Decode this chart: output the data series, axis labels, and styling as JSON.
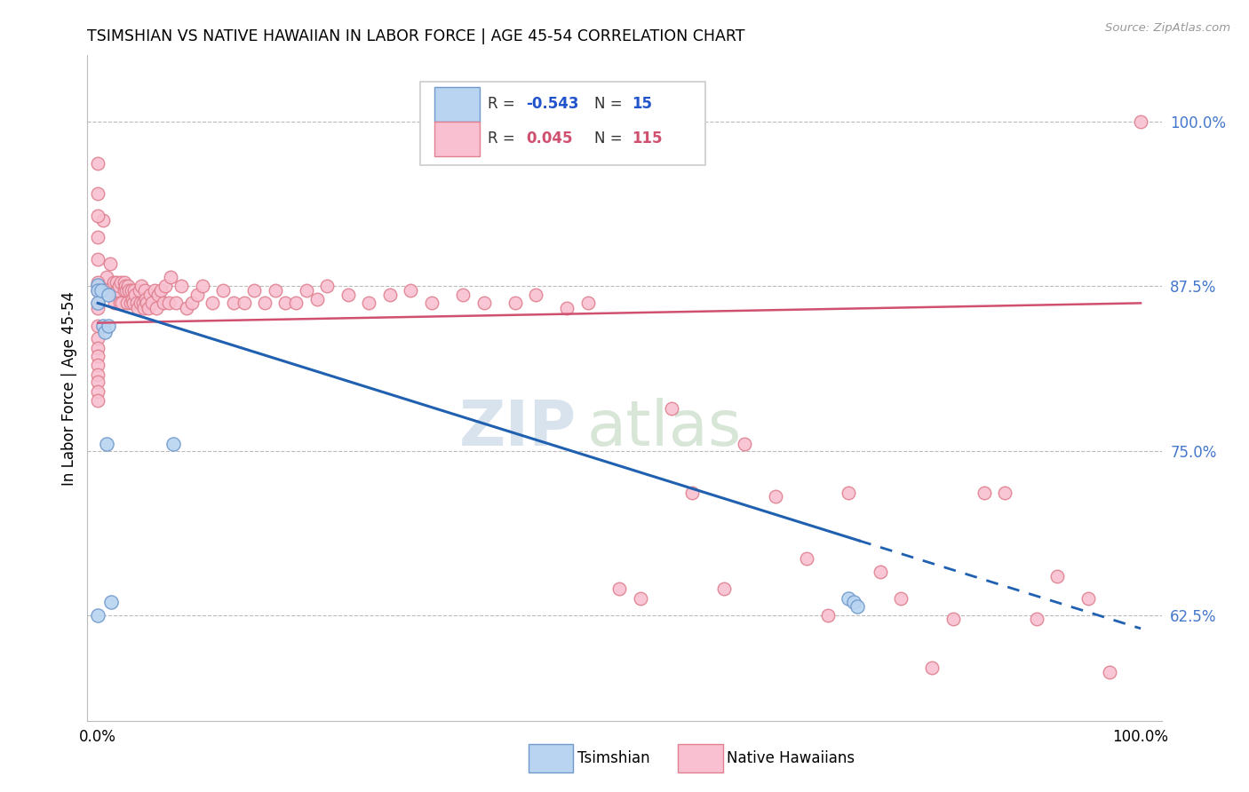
{
  "title": "TSIMSHIAN VS NATIVE HAWAIIAN IN LABOR FORCE | AGE 45-54 CORRELATION CHART",
  "source": "Source: ZipAtlas.com",
  "ylabel": "In Labor Force | Age 45-54",
  "ytick_values": [
    0.625,
    0.75,
    0.875,
    1.0
  ],
  "ytick_labels": [
    "62.5%",
    "75.0%",
    "87.5%",
    "100.0%"
  ],
  "xlim": [
    -0.01,
    1.02
  ],
  "ylim": [
    0.545,
    1.05
  ],
  "legend_r_tsimshian": "-0.543",
  "legend_n_tsimshian": "15",
  "legend_r_native_hawaiian": "0.045",
  "legend_n_native_hawaiian": "115",
  "tsimshian_fc": "#b8d4f0",
  "tsimshian_ec": "#7099cc",
  "native_hawaiian_fc": "#f8c0d0",
  "native_hawaiian_ec": "#e08090",
  "tsimshian_line_color": "#2060b0",
  "native_hawaiian_line_color": "#d05070",
  "tsimshian_line_start_y": 0.862,
  "tsimshian_line_end_y": 0.615,
  "tsimshian_line_solid_end": 0.73,
  "native_hawaiian_line_start_y": 0.847,
  "native_hawaiian_line_end_y": 0.862,
  "watermark_zip_color": "#c8d8e8",
  "watermark_atlas_color": "#c8dcc8",
  "tsimshian_x": [
    0.0,
    0.0,
    0.0,
    0.0,
    0.003,
    0.005,
    0.007,
    0.008,
    0.01,
    0.01,
    0.013,
    0.072,
    0.72,
    0.725,
    0.728
  ],
  "tsimshian_y": [
    0.876,
    0.872,
    0.862,
    0.625,
    0.872,
    0.845,
    0.84,
    0.755,
    0.868,
    0.845,
    0.635,
    0.755,
    0.638,
    0.635,
    0.632
  ],
  "native_hawaiian_x": [
    0.005,
    0.008,
    0.01,
    0.012,
    0.015,
    0.016,
    0.018,
    0.019,
    0.02,
    0.021,
    0.022,
    0.023,
    0.025,
    0.025,
    0.026,
    0.027,
    0.028,
    0.029,
    0.03,
    0.031,
    0.032,
    0.033,
    0.034,
    0.035,
    0.036,
    0.037,
    0.038,
    0.04,
    0.041,
    0.042,
    0.043,
    0.044,
    0.045,
    0.046,
    0.047,
    0.048,
    0.05,
    0.052,
    0.054,
    0.056,
    0.058,
    0.06,
    0.063,
    0.065,
    0.068,
    0.07,
    0.075,
    0.08,
    0.085,
    0.09,
    0.095,
    0.1,
    0.11,
    0.12,
    0.13,
    0.14,
    0.15,
    0.16,
    0.17,
    0.18,
    0.19,
    0.2,
    0.21,
    0.22,
    0.24,
    0.26,
    0.28,
    0.3,
    0.32,
    0.35,
    0.37,
    0.4,
    0.42,
    0.45,
    0.47,
    0.5,
    0.52,
    0.55,
    0.57,
    0.6,
    0.62,
    0.65,
    0.68,
    0.7,
    0.72,
    0.75,
    0.77,
    0.8,
    0.82,
    0.85,
    0.87,
    0.9,
    0.92,
    0.95,
    0.97,
    1.0,
    0.0,
    0.0,
    0.0,
    0.0,
    0.0,
    0.0,
    0.0,
    0.0,
    0.0,
    0.0,
    0.0,
    0.0,
    0.0,
    0.0,
    0.0,
    0.0,
    0.0,
    0.0,
    0.0
  ],
  "native_hawaiian_y": [
    0.925,
    0.882,
    0.872,
    0.892,
    0.878,
    0.862,
    0.878,
    0.872,
    0.875,
    0.862,
    0.878,
    0.862,
    0.878,
    0.872,
    0.875,
    0.872,
    0.862,
    0.875,
    0.872,
    0.862,
    0.872,
    0.865,
    0.862,
    0.872,
    0.868,
    0.862,
    0.858,
    0.872,
    0.862,
    0.875,
    0.862,
    0.858,
    0.872,
    0.865,
    0.862,
    0.858,
    0.868,
    0.862,
    0.872,
    0.858,
    0.868,
    0.872,
    0.862,
    0.875,
    0.862,
    0.882,
    0.862,
    0.875,
    0.858,
    0.862,
    0.868,
    0.875,
    0.862,
    0.872,
    0.862,
    0.862,
    0.872,
    0.862,
    0.872,
    0.862,
    0.862,
    0.872,
    0.865,
    0.875,
    0.868,
    0.862,
    0.868,
    0.872,
    0.862,
    0.868,
    0.862,
    0.862,
    0.868,
    0.858,
    0.862,
    0.645,
    0.638,
    0.782,
    0.718,
    0.645,
    0.755,
    0.715,
    0.668,
    0.625,
    0.718,
    0.658,
    0.638,
    0.585,
    0.622,
    0.718,
    0.718,
    0.622,
    0.655,
    0.638,
    0.582,
    1.0,
    0.968,
    0.945,
    0.928,
    0.912,
    0.895,
    0.878,
    0.875,
    0.872,
    0.862,
    0.858,
    0.845,
    0.835,
    0.828,
    0.822,
    0.815,
    0.808,
    0.802,
    0.795,
    0.788
  ]
}
